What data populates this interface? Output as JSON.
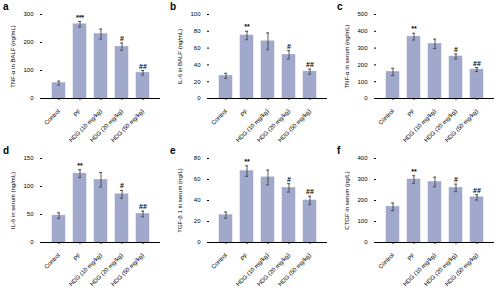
{
  "chart_data": [
    {
      "type": "bar",
      "title": "a",
      "ylabel": "TNF-α in BALF (ng/mL)",
      "categories": [
        "Control",
        "PF",
        "HDG (10 mg/kg)",
        "HDG (20 mg/kg)",
        "HDG (50 mg/kg)"
      ],
      "values": [
        55,
        265,
        230,
        185,
        92
      ],
      "errors": [
        7,
        10,
        18,
        13,
        8
      ],
      "annotations": [
        null,
        "***",
        null,
        "#",
        "##"
      ],
      "ylim": [
        0,
        300
      ],
      "yticks": [
        0,
        100,
        200,
        300
      ],
      "color": "#a0a9cc"
    },
    {
      "type": "bar",
      "title": "b",
      "ylabel": "IL-6 in BALF (ng/mL)",
      "categories": [
        "Control",
        "PF",
        "HDG (10 mg/kg)",
        "HDG (20 mg/kg)",
        "HDG (50 mg/kg)"
      ],
      "values": [
        27,
        75,
        68,
        52,
        32
      ],
      "errors": [
        3,
        5,
        10,
        5,
        3
      ],
      "annotations": [
        null,
        "**",
        null,
        "#",
        "##"
      ],
      "ylim": [
        0,
        100
      ],
      "yticks": [
        0,
        20,
        40,
        60,
        80,
        100
      ],
      "color": "#a0a9cc"
    },
    {
      "type": "bar",
      "title": "c",
      "ylabel": "TNF-α in serum (ng/mL)",
      "categories": [
        "Control",
        "PF",
        "HDG (10 mg/kg)",
        "HDG (20 mg/kg)",
        "HDG (50 mg/kg)"
      ],
      "values": [
        158,
        368,
        325,
        250,
        172
      ],
      "errors": [
        22,
        20,
        28,
        15,
        12
      ],
      "annotations": [
        null,
        "**",
        null,
        "#",
        "##"
      ],
      "ylim": [
        0,
        500
      ],
      "yticks": [
        0,
        100,
        200,
        300,
        400,
        500
      ],
      "color": "#a0a9cc"
    },
    {
      "type": "bar",
      "title": "d",
      "ylabel": "IL-6 in serum (ng/mL)",
      "categories": [
        "Control",
        "PF",
        "HDG (10 mg/kg)",
        "HDG (20 mg/kg)",
        "HDG (50 mg/kg)"
      ],
      "values": [
        48,
        123,
        112,
        86,
        51
      ],
      "errors": [
        5,
        7,
        13,
        7,
        5
      ],
      "annotations": [
        null,
        "**",
        null,
        "#",
        "##"
      ],
      "ylim": [
        0,
        150
      ],
      "yticks": [
        0,
        50,
        100,
        150
      ],
      "color": "#a0a9cc"
    },
    {
      "type": "bar",
      "title": "e",
      "ylabel": "TGF-β 1 in serum (ng/L)",
      "categories": [
        "Control",
        "PF",
        "HDG (10 mg/kg)",
        "HDG (20 mg/kg)",
        "HDG (50 mg/kg)"
      ],
      "values": [
        26,
        68,
        62,
        52,
        40
      ],
      "errors": [
        3,
        5,
        7,
        4,
        4
      ],
      "annotations": [
        null,
        "**",
        null,
        "#",
        "##"
      ],
      "ylim": [
        0,
        80
      ],
      "yticks": [
        0,
        20,
        40,
        60,
        80
      ],
      "color": "#a0a9cc"
    },
    {
      "type": "bar",
      "title": "f",
      "ylabel": "CTGF in serum (pg/L)",
      "categories": [
        "Control",
        "PF",
        "HDG (10 mg/kg)",
        "HDG (20 mg/kg)",
        "HDG (50 mg/kg)"
      ],
      "values": [
        170,
        300,
        288,
        260,
        215
      ],
      "errors": [
        18,
        18,
        23,
        18,
        13
      ],
      "annotations": [
        null,
        "**",
        null,
        "#",
        "##"
      ],
      "ylim": [
        0,
        400
      ],
      "yticks": [
        0,
        100,
        200,
        300,
        400
      ],
      "color": "#a0a9cc"
    }
  ]
}
